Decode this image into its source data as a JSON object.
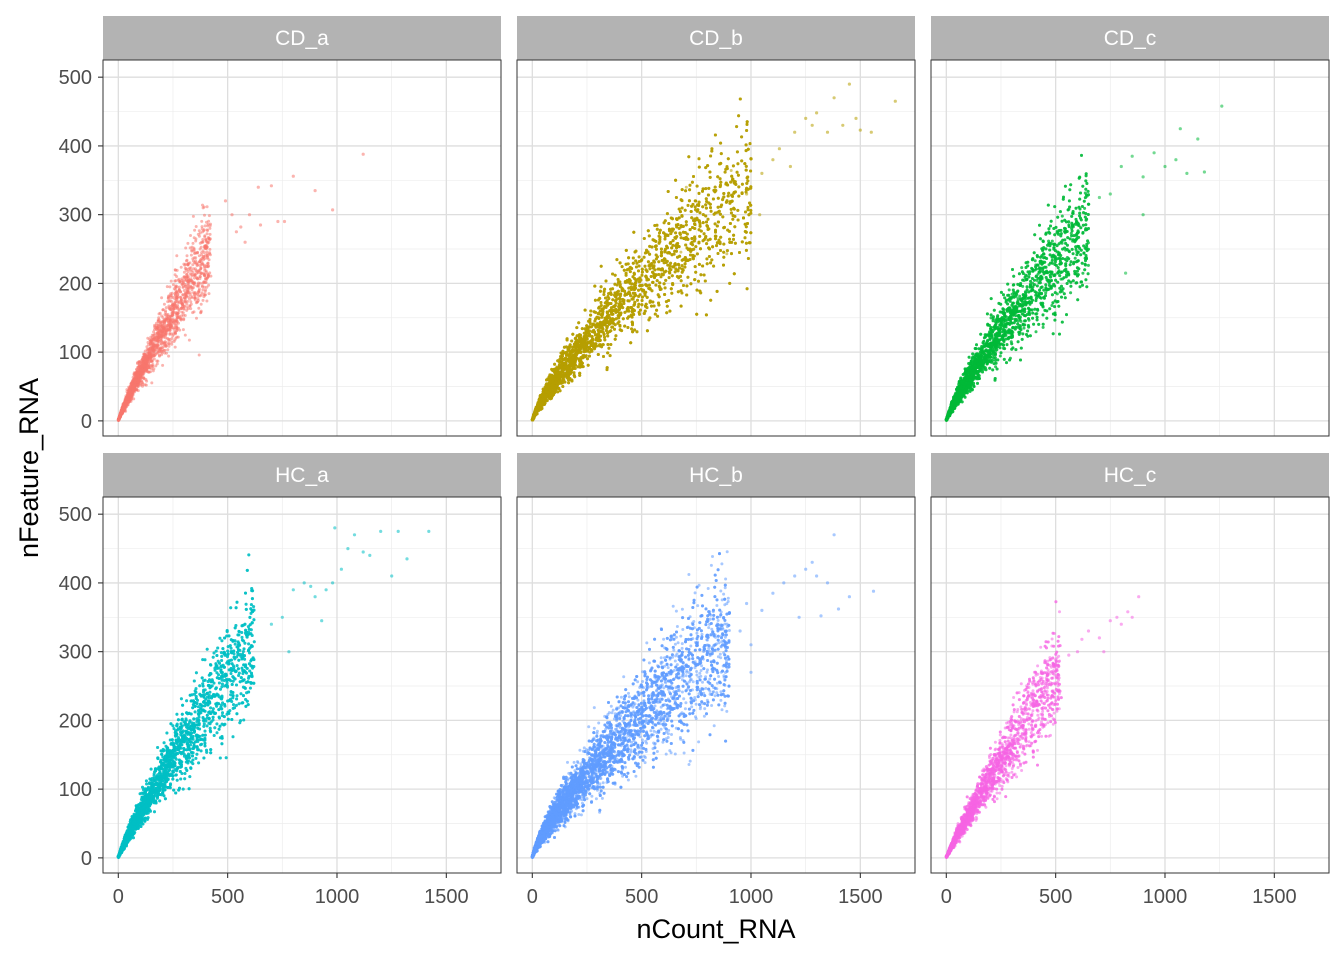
{
  "chart_data": {
    "type": "scatter",
    "title": "",
    "xlabel": "nCount_RNA",
    "ylabel": "nFeature_RNA",
    "xlim": [
      -70,
      1750
    ],
    "ylim": [
      -22,
      525
    ],
    "x_ticks": [
      0,
      500,
      1000,
      1500
    ],
    "x_tick_labels": [
      "0",
      "500",
      "1000",
      "1500"
    ],
    "y_ticks": [
      0,
      100,
      200,
      300,
      400,
      500
    ],
    "y_tick_labels": [
      "0",
      "100",
      "200",
      "300",
      "400",
      "500"
    ],
    "grid": true,
    "legend": "none",
    "facet_layout": "2 rows x 3 columns, shared axes",
    "panels": [
      {
        "name": "CD_a",
        "color": "#F8766D",
        "density": 2200,
        "bulk": {
          "x_end": 420,
          "feature_at_x_end": 245,
          "exponent": 0.88,
          "spread": 0.14
        },
        "outliers": [
          [
            490,
            320
          ],
          [
            520,
            300
          ],
          [
            560,
            282
          ],
          [
            600,
            300
          ],
          [
            640,
            340
          ],
          [
            700,
            342
          ],
          [
            730,
            290
          ],
          [
            760,
            290
          ],
          [
            800,
            356
          ],
          [
            900,
            335
          ],
          [
            980,
            307
          ],
          [
            1120,
            388
          ],
          [
            580,
            260
          ],
          [
            650,
            285
          ],
          [
            540,
            275
          ]
        ]
      },
      {
        "name": "CD_b",
        "color": "#B79F00",
        "density": 9000,
        "bulk": {
          "x_end": 1000,
          "feature_at_x_end": 345,
          "exponent": 0.78,
          "spread": 0.16
        },
        "outliers": [
          [
            1050,
            360
          ],
          [
            1100,
            380
          ],
          [
            1130,
            396
          ],
          [
            1180,
            370
          ],
          [
            1200,
            420
          ],
          [
            1250,
            440
          ],
          [
            1280,
            430
          ],
          [
            1300,
            448
          ],
          [
            1350,
            420
          ],
          [
            1380,
            470
          ],
          [
            1420,
            430
          ],
          [
            1450,
            490
          ],
          [
            1480,
            440
          ],
          [
            1500,
            423
          ],
          [
            1550,
            420
          ],
          [
            1660,
            465
          ],
          [
            1040,
            300
          ],
          [
            980,
            330
          ]
        ]
      },
      {
        "name": "CD_c",
        "color": "#00BA38",
        "density": 6000,
        "bulk": {
          "x_end": 650,
          "feature_at_x_end": 285,
          "exponent": 0.82,
          "spread": 0.16
        },
        "outliers": [
          [
            700,
            325
          ],
          [
            750,
            330
          ],
          [
            800,
            370
          ],
          [
            850,
            385
          ],
          [
            900,
            355
          ],
          [
            950,
            390
          ],
          [
            1000,
            370
          ],
          [
            1050,
            380
          ],
          [
            1070,
            425
          ],
          [
            1100,
            360
          ],
          [
            1150,
            410
          ],
          [
            1180,
            362
          ],
          [
            1260,
            458
          ],
          [
            820,
            215
          ],
          [
            900,
            300
          ]
        ]
      },
      {
        "name": "HC_a",
        "color": "#00BFC4",
        "density": 7000,
        "bulk": {
          "x_end": 620,
          "feature_at_x_end": 315,
          "exponent": 0.86,
          "spread": 0.15
        },
        "outliers": [
          [
            700,
            340
          ],
          [
            750,
            350
          ],
          [
            780,
            300
          ],
          [
            800,
            390
          ],
          [
            850,
            400
          ],
          [
            880,
            395
          ],
          [
            900,
            380
          ],
          [
            950,
            390
          ],
          [
            980,
            400
          ],
          [
            990,
            480
          ],
          [
            1020,
            420
          ],
          [
            1050,
            450
          ],
          [
            1080,
            470
          ],
          [
            1120,
            445
          ],
          [
            1150,
            440
          ],
          [
            1200,
            475
          ],
          [
            1250,
            410
          ],
          [
            1280,
            475
          ],
          [
            1320,
            435
          ],
          [
            1420,
            475
          ],
          [
            930,
            345
          ]
        ]
      },
      {
        "name": "HC_b",
        "color": "#619CFF",
        "density": 8000,
        "bulk": {
          "x_end": 900,
          "feature_at_x_end": 320,
          "exponent": 0.76,
          "spread": 0.17
        },
        "outliers": [
          [
            950,
            330
          ],
          [
            980,
            370
          ],
          [
            1000,
            310
          ],
          [
            1050,
            360
          ],
          [
            1100,
            385
          ],
          [
            1150,
            400
          ],
          [
            1200,
            410
          ],
          [
            1220,
            350
          ],
          [
            1250,
            420
          ],
          [
            1280,
            430
          ],
          [
            1300,
            410
          ],
          [
            1320,
            352
          ],
          [
            1350,
            400
          ],
          [
            1380,
            470
          ],
          [
            1400,
            362
          ],
          [
            1450,
            380
          ],
          [
            1560,
            388
          ],
          [
            1000,
            270
          ]
        ]
      },
      {
        "name": "HC_c",
        "color": "#F564E3",
        "density": 3000,
        "bulk": {
          "x_end": 520,
          "feature_at_x_end": 272,
          "exponent": 0.9,
          "spread": 0.14
        },
        "outliers": [
          [
            560,
            295
          ],
          [
            600,
            300
          ],
          [
            620,
            318
          ],
          [
            650,
            330
          ],
          [
            700,
            320
          ],
          [
            720,
            300
          ],
          [
            750,
            345
          ],
          [
            780,
            350
          ],
          [
            800,
            340
          ],
          [
            830,
            358
          ],
          [
            850,
            350
          ],
          [
            880,
            380
          ]
        ]
      }
    ]
  }
}
